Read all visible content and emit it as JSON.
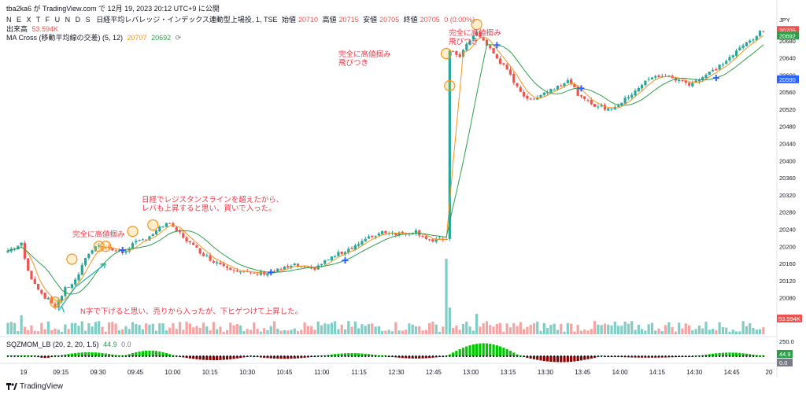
{
  "header": {
    "published": "tba2ka6 が TradingView.com で 12月 19, 2023 20:12 UTC+9 に公開",
    "symbol_name": "N E X T   F U N D S",
    "instrument": "日経平均レバレッジ・インデックス連動型上場投, 1, TSE",
    "o_label": "始値",
    "o_value": "20710",
    "h_label": "高値",
    "h_value": "20715",
    "l_label": "安値",
    "l_value": "20705",
    "c_label": "終値",
    "c_value": "20705",
    "change": "0 (0.00%)"
  },
  "legends": {
    "volume_label": "出来高",
    "volume_value": "53.594K",
    "ma_label": "MA Cross (移動平均線の交差) (5, 12)",
    "ma_fast": "20707",
    "ma_slow": "20692",
    "sqz_label": "SQZMOM_LB (20, 2, 20, 1.5)",
    "sqz_v1": "44.9",
    "sqz_v2": "0.0"
  },
  "footer": {
    "logo": "TradingView"
  },
  "colors": {
    "up": "#26a69a",
    "down": "#ef5350",
    "up_vol": "#7fcdc5",
    "down_vol": "#f5a4a3",
    "ma_fast": "#f7931a",
    "ma_slow": "#2e9e4b",
    "annotation": "#f23645",
    "arrow": "#22b5a8",
    "marker": "#2962ff",
    "sqz_pos": "#00c800",
    "sqz_neg": "#8b0000"
  },
  "chart_data": {
    "type": "candlestick",
    "y_axis": {
      "currency": "JPY",
      "ylim": [
        20050,
        20720
      ],
      "ticks": [
        "20680",
        "20640",
        "20600",
        "20560",
        "20520",
        "20480",
        "20440",
        "20400",
        "20360",
        "20320",
        "20280",
        "20240",
        "20200",
        "20160",
        "20120",
        "20080"
      ],
      "badges": [
        {
          "label": "20705",
          "value": 20705,
          "color": "#ef5350"
        },
        {
          "label": "20692",
          "value": 20692,
          "color": "#2e9e4b"
        },
        {
          "label": "20590",
          "value": 20590,
          "color": "#2962ff"
        }
      ],
      "volume_badge": "53.594K",
      "sqz_ticks": [
        "250.0"
      ],
      "sqz_badges": [
        {
          "label": "44.9",
          "color": "#2e9e4b"
        },
        {
          "label": "0.0",
          "color": "#787b86"
        }
      ]
    },
    "x_axis": {
      "labels": [
        "19",
        "09:15",
        "09:30",
        "09:45",
        "10:00",
        "10:15",
        "10:30",
        "10:45",
        "11:00",
        "11:15",
        "12:30",
        "12:45",
        "13:00",
        "13:15",
        "13:30",
        "13:45",
        "14:00",
        "14:15",
        "14:30",
        "14:45",
        "20"
      ]
    },
    "price_path": [
      [
        0,
        20190
      ],
      [
        4,
        20205
      ],
      [
        6,
        20140
      ],
      [
        10,
        20090
      ],
      [
        14,
        20060
      ],
      [
        17,
        20100
      ],
      [
        20,
        20120
      ],
      [
        24,
        20185
      ],
      [
        27,
        20205
      ],
      [
        30,
        20195
      ],
      [
        34,
        20185
      ],
      [
        37,
        20205
      ],
      [
        40,
        20215
      ],
      [
        44,
        20235
      ],
      [
        47,
        20255
      ],
      [
        51,
        20230
      ],
      [
        55,
        20200
      ],
      [
        60,
        20170
      ],
      [
        66,
        20150
      ],
      [
        72,
        20135
      ],
      [
        78,
        20140
      ],
      [
        85,
        20155
      ],
      [
        90,
        20145
      ],
      [
        95,
        20170
      ],
      [
        100,
        20190
      ],
      [
        106,
        20215
      ],
      [
        111,
        20235
      ],
      [
        116,
        20230
      ],
      [
        121,
        20235
      ],
      [
        126,
        20210
      ],
      [
        130,
        20220
      ],
      [
        131,
        20655
      ],
      [
        134,
        20645
      ],
      [
        136,
        20670
      ],
      [
        139,
        20700
      ],
      [
        143,
        20660
      ],
      [
        147,
        20620
      ],
      [
        151,
        20575
      ],
      [
        154,
        20540
      ],
      [
        158,
        20555
      ],
      [
        162,
        20570
      ],
      [
        166,
        20590
      ],
      [
        170,
        20545
      ],
      [
        174,
        20530
      ],
      [
        178,
        20520
      ],
      [
        182,
        20535
      ],
      [
        186,
        20565
      ],
      [
        190,
        20590
      ],
      [
        194,
        20600
      ],
      [
        198,
        20590
      ],
      [
        202,
        20580
      ],
      [
        206,
        20595
      ],
      [
        210,
        20615
      ],
      [
        214,
        20640
      ],
      [
        219,
        20675
      ],
      [
        224,
        20705
      ]
    ],
    "volume_spikes": [
      [
        4,
        60
      ],
      [
        24,
        35
      ],
      [
        130,
        240
      ],
      [
        131,
        85
      ],
      [
        139,
        65
      ],
      [
        220,
        35
      ]
    ],
    "sqz_humps": [
      [
        8,
        14,
        -12
      ],
      [
        14,
        34,
        28
      ],
      [
        34,
        50,
        40
      ],
      [
        50,
        72,
        -28
      ],
      [
        72,
        92,
        -18
      ],
      [
        92,
        112,
        22
      ],
      [
        112,
        130,
        -16
      ],
      [
        130,
        152,
        92
      ],
      [
        152,
        176,
        -42
      ],
      [
        176,
        204,
        -10
      ],
      [
        204,
        224,
        26
      ]
    ],
    "series": [
      {
        "name": "MA Cross (移動平均線の交差) (5, 12) 5",
        "last_value": 20707,
        "period": 5
      },
      {
        "name": "MA Cross (移動平均線の交差) (5, 12) 12",
        "last_value": 20692,
        "period": 12
      }
    ],
    "crosses": [
      34,
      78,
      100,
      145,
      170,
      210
    ],
    "annotations": [
      {
        "text": "完全に高値掴み",
        "line2": "",
        "pos": "a1"
      },
      {
        "text": "日経でレジスタンスラインを超えたから、",
        "line2": "レバも上昇すると思い、買いで入った。",
        "pos": "a2"
      },
      {
        "text": "N字で下げると思い、売りから入ったが、下ヒゲつけて上昇した。",
        "line2": "",
        "pos": "a3"
      },
      {
        "text": "完全に高値掴み",
        "line2": "飛びつき",
        "pos": "a4"
      },
      {
        "text": "完全に高値掴み",
        "line2": "飛びつき",
        "pos": "a5"
      }
    ],
    "circles": [
      [
        14,
        20070
      ],
      [
        19,
        20170
      ],
      [
        27,
        20200
      ],
      [
        29,
        20200
      ],
      [
        37,
        20235
      ],
      [
        43,
        20250
      ],
      [
        130,
        20650
      ],
      [
        131,
        20575
      ],
      [
        139,
        20718
      ]
    ]
  }
}
